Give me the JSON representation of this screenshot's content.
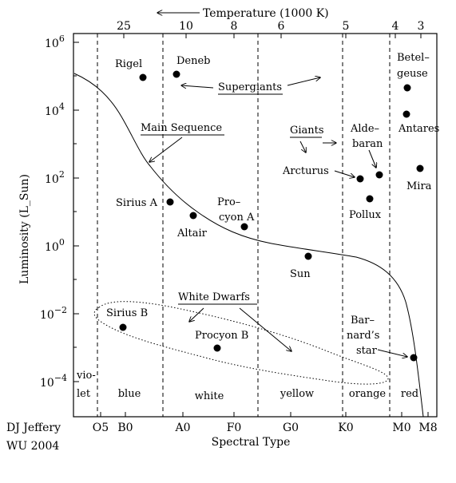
{
  "top_axis": {
    "title": "Temperature (1000 K)",
    "ticks": [
      "25",
      "10",
      "8",
      "6",
      "5",
      "4",
      "3"
    ]
  },
  "left_axis": {
    "title": "Luminosity (L_Sun)",
    "ticks": [
      {
        "base": "10",
        "exp": "6"
      },
      {
        "base": "10",
        "exp": "4"
      },
      {
        "base": "10",
        "exp": "2"
      },
      {
        "base": "10",
        "exp": "0"
      },
      {
        "base": "10",
        "exp": "−2"
      },
      {
        "base": "10",
        "exp": "−4"
      }
    ]
  },
  "bottom_axis": {
    "title": "Spectral Type",
    "ticks": [
      "O5",
      "B0",
      "A0",
      "F0",
      "G0",
      "K0",
      "M0",
      "M8"
    ]
  },
  "color_bands": [
    "vio-",
    "let",
    "blue",
    "white",
    "yellow",
    "orange",
    "red"
  ],
  "groups": {
    "supergiants": "Supergiants",
    "main_sequence": "Main Sequence",
    "giants": "Giants",
    "white_dwarfs": "White Dwarfs"
  },
  "stars": {
    "rigel": "Rigel",
    "deneb": "Deneb",
    "betelgeuse_1": "Betel–",
    "betelgeuse_2": "geuse",
    "antares": "Antares",
    "aldebaran_1": "Alde–",
    "aldebaran_2": "baran",
    "arcturus": "Arcturus",
    "mira": "Mira",
    "pollux": "Pollux",
    "sirius_a": "Sirius A",
    "procyon_a_1": "Pro–",
    "procyon_a_2": "cyon A",
    "altair": "Altair",
    "sun": "Sun",
    "sirius_b": "Sirius B",
    "procyon_b": "Procyon B",
    "barnards_1": "Bar–",
    "barnards_2": "nard’s",
    "barnards_3": "star"
  },
  "credit": {
    "line1": "DJ Jeffery",
    "line2": "WU 2004"
  }
}
